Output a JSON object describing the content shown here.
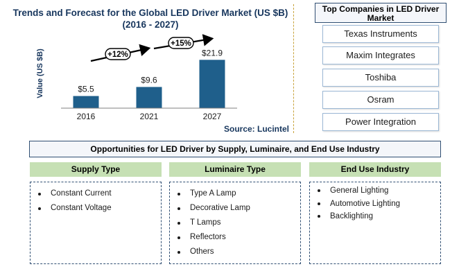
{
  "chart_data": {
    "type": "bar",
    "title": "Trends and Forecast for the Global LED Driver Market (US $B)\n(2016 - 2027)",
    "ylabel": "Value (US $B)",
    "xlabel": "",
    "categories": [
      "2016",
      "2021",
      "2027"
    ],
    "values": [
      5.5,
      9.6,
      21.9
    ],
    "value_labels": [
      "$5.5",
      "$9.6",
      "$21.9"
    ],
    "ylim": [
      0,
      22
    ],
    "grid": false,
    "bar_color": "#1f5f8b",
    "annotations": [
      {
        "text": "+12%",
        "from": "2016",
        "to": "2021"
      },
      {
        "text": "+15%",
        "from": "2021",
        "to": "2027"
      }
    ],
    "source": "Source: Lucintel"
  },
  "companies": {
    "title": "Top Companies in LED Driver Market",
    "items": [
      "Texas Instruments",
      "Maxim Integrates",
      "Toshiba",
      "Osram",
      "Power Integration"
    ]
  },
  "opportunities": {
    "title": "Opportunities for LED Driver by Supply, Luminaire, and End Use Industry",
    "categories": [
      {
        "name": "Supply Type",
        "items": [
          "Constant Current",
          "Constant Voltage"
        ]
      },
      {
        "name": "Luminaire Type",
        "items": [
          "Type A Lamp",
          "Decorative Lamp",
          "T Lamps",
          "Reflectors",
          "Others"
        ]
      },
      {
        "name": "End Use Industry",
        "items": [
          "General Lighting",
          "Automotive Lighting",
          "Backlighting"
        ]
      }
    ]
  },
  "colors": {
    "accent": "#1f5f8b",
    "header_text": "#17365d",
    "category_fill": "#c6e0b4",
    "box_border": "#2f4e72"
  }
}
